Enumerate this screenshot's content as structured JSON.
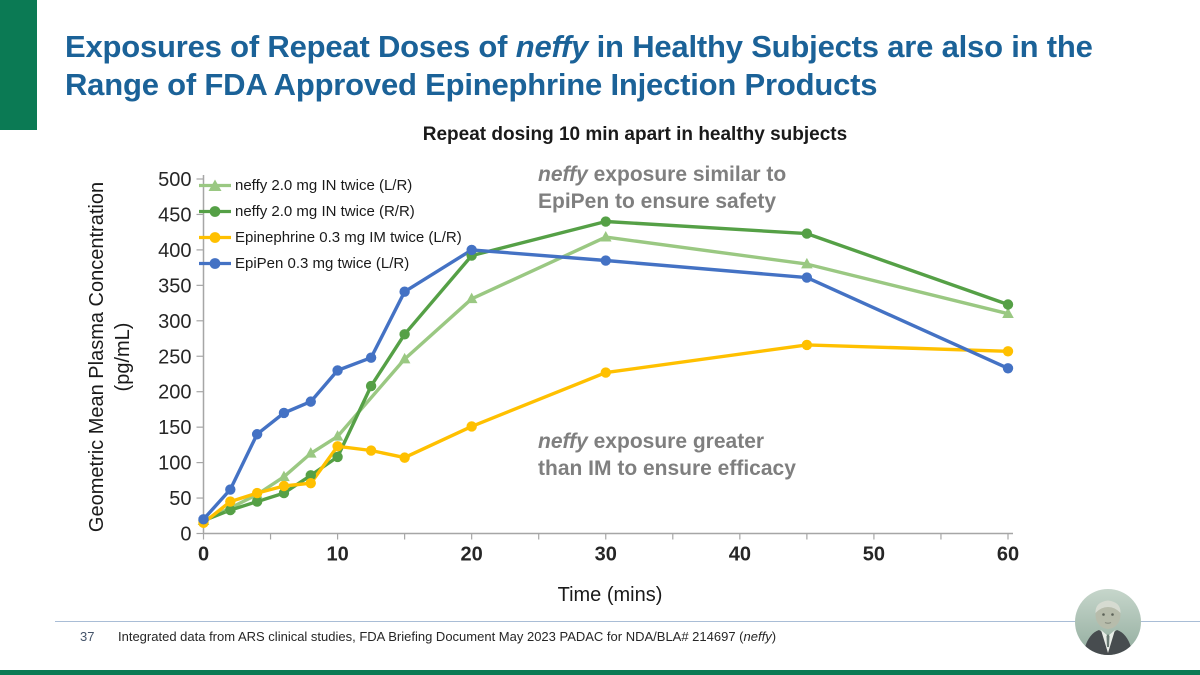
{
  "slide": {
    "accent_color": "#0B7A54",
    "title_color": "#1B6298",
    "title": {
      "line1_pre": "Exposures of Repeat Doses of ",
      "line1_italic": "neffy",
      "line1_post": " in Healthy Subjects are also in",
      "line2": "the Range of FDA Approved Epinephrine Injection Products"
    }
  },
  "chart_data": {
    "type": "line",
    "title": "Repeat dosing 10 min apart in healthy subjects",
    "xlabel": "Time (mins)",
    "ylabel_line1": "Geometric Mean Plasma Concentration",
    "ylabel_line2": "(pg/mL)",
    "xlim": [
      0,
      60
    ],
    "ylim": [
      0,
      500
    ],
    "x_ticks": [
      0,
      10,
      20,
      30,
      40,
      50,
      60
    ],
    "x_minor_tick_step": 5,
    "y_ticks": [
      0,
      50,
      100,
      150,
      200,
      250,
      300,
      350,
      400,
      450,
      500
    ],
    "grid": false,
    "legend_position": "top-left",
    "axis_color": "#A6A6A6",
    "x": [
      0,
      2,
      4,
      6,
      8,
      10,
      12.5,
      15,
      20,
      30,
      45,
      60
    ],
    "series": [
      {
        "name": "neffy 2.0 mg IN twice (L/R)",
        "color": "#9AC882",
        "marker": "triangle",
        "values": [
          18,
          36,
          55,
          80,
          113,
          137,
          null,
          246,
          331,
          418,
          380,
          310
        ]
      },
      {
        "name": "neffy 2.0 mg IN twice (R/R)",
        "color": "#55A046",
        "marker": "circle",
        "values": [
          18,
          33,
          45,
          57,
          82,
          108,
          208,
          281,
          392,
          440,
          423,
          323
        ]
      },
      {
        "name": "Epinephrine 0.3 mg IM twice (L/R)",
        "color": "#FFC000",
        "marker": "circle",
        "values": [
          15,
          45,
          57,
          67,
          71,
          123,
          117,
          107,
          151,
          227,
          266,
          257
        ]
      },
      {
        "name": "EpiPen 0.3 mg twice (L/R)",
        "color": "#4472C4",
        "marker": "circle",
        "values": [
          20,
          62,
          140,
          170,
          186,
          230,
          248,
          341,
          400,
          385,
          361,
          233
        ]
      }
    ],
    "annotation_color": "#7F7F7F",
    "annotations": [
      {
        "italic": "neffy",
        "line1_rest": " exposure similar to",
        "line2": "EpiPen to ensure safety"
      },
      {
        "italic": "neffy",
        "line1_rest": " exposure greater",
        "line2": "than IM to ensure efficacy"
      }
    ]
  },
  "footer": {
    "page_number": "37",
    "text_pre": "Integrated data from ARS clinical studies, FDA Briefing Document May 2023 PADAC for NDA/BLA# 214697 (",
    "text_italic": "neffy",
    "text_post": ")"
  }
}
